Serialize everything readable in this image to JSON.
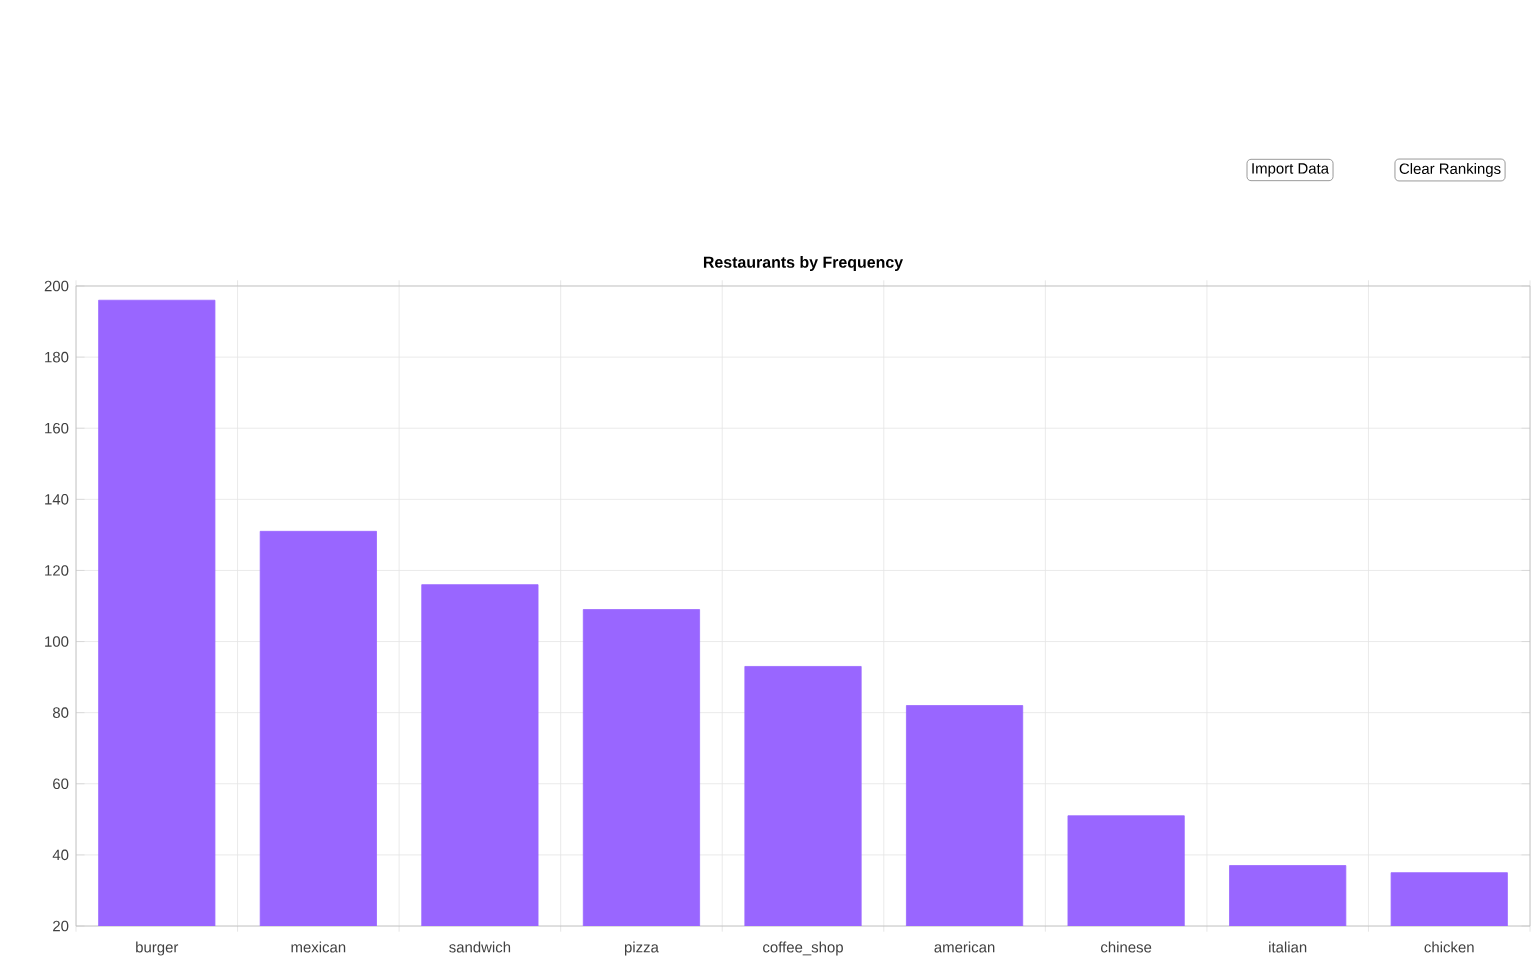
{
  "chart_data": {
    "type": "bar",
    "title": "Restaurants by Frequency",
    "categories": [
      "burger",
      "mexican",
      "sandwich",
      "pizza",
      "coffee_shop",
      "american",
      "chinese",
      "italian",
      "chicken"
    ],
    "values": [
      196,
      131,
      116,
      109,
      93,
      82,
      51,
      37,
      35
    ],
    "color": "#9966ff",
    "ylim": [
      20,
      200
    ],
    "yticks": [
      20,
      40,
      60,
      80,
      100,
      120,
      140,
      160,
      180,
      200
    ],
    "grid": true,
    "annotations": [
      "Import Data",
      "Clear Rankings"
    ]
  }
}
